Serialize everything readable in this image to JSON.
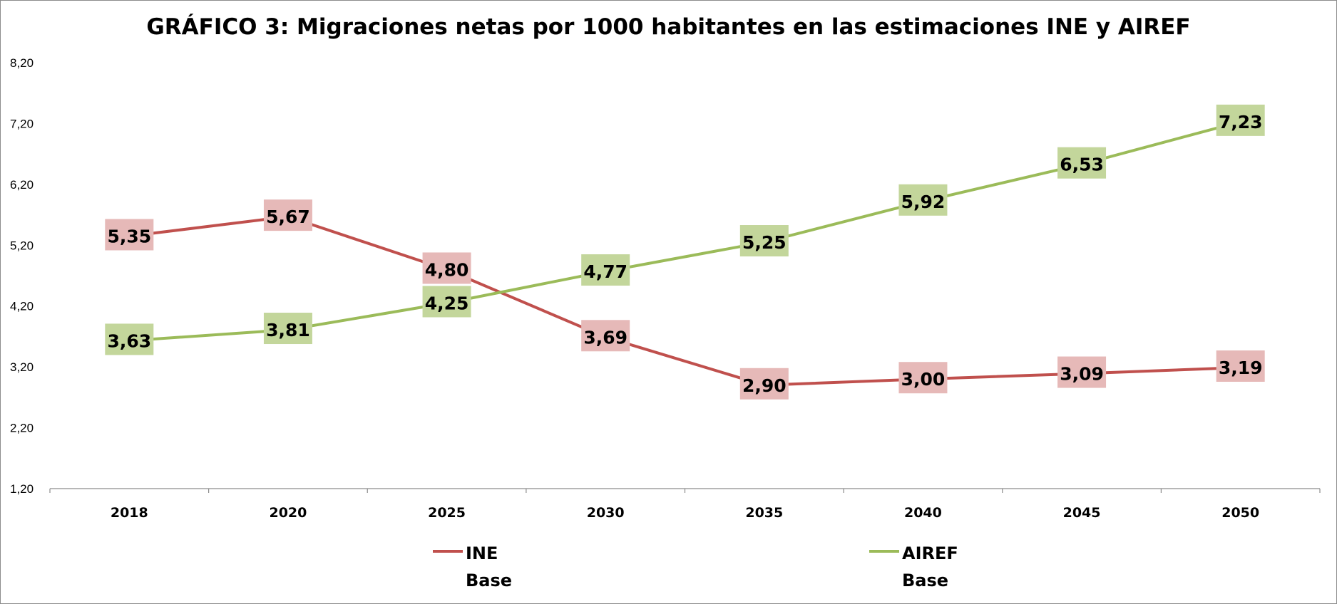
{
  "chart_data": {
    "type": "line",
    "title": "GRÁFICO 3: Migraciones netas por 1000 habitantes en las estimaciones INE y AIREF",
    "categories": [
      "2018",
      "2020",
      "2025",
      "2030",
      "2035",
      "2040",
      "2045",
      "2050"
    ],
    "y_ticks": [
      "1,20",
      "2,20",
      "3,20",
      "4,20",
      "5,20",
      "6,20",
      "7,20",
      "8,20"
    ],
    "ylim": [
      1.2,
      8.2
    ],
    "grid": false,
    "legend_position": "bottom",
    "series": [
      {
        "key": "ine",
        "name_line1": "INE",
        "name_line2": "Base",
        "color": "#c0504d",
        "label_bg": "#e6b9b8",
        "values": [
          5.35,
          5.67,
          4.8,
          3.69,
          2.9,
          3.0,
          3.09,
          3.19
        ],
        "labels": [
          "5,35",
          "5,67",
          "4,80",
          "3,69",
          "2,90",
          "3,00",
          "3,09",
          "3,19"
        ]
      },
      {
        "key": "airef",
        "name_line1": "AIREF",
        "name_line2": "Base",
        "color": "#9bbb59",
        "label_bg": "#c3d69b",
        "values": [
          3.63,
          3.81,
          4.25,
          4.77,
          5.25,
          5.92,
          6.53,
          7.23
        ],
        "labels": [
          "3,63",
          "3,81",
          "4,25",
          "4,77",
          "5,25",
          "5,92",
          "6,53",
          "7,23"
        ]
      }
    ]
  }
}
